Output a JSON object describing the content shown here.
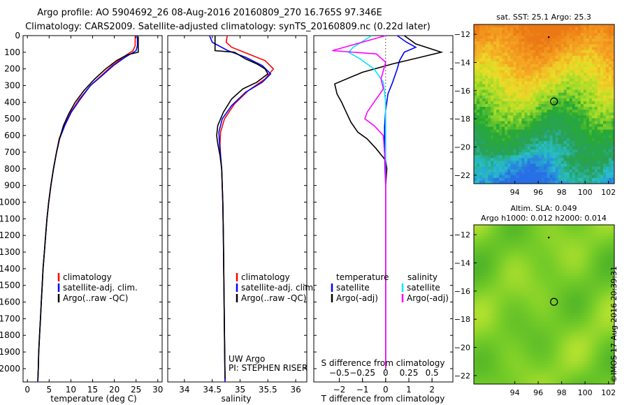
{
  "title": {
    "line1": "Argo profile: AO 5904692_26 08-Aug-2016 20160809_270 16.765S 97.346E",
    "line2": "Climatology: CARS2009. Satellite-adjusted climatology: synTS_20160809.nc (0.22d later)"
  },
  "colors": {
    "climatology": "#ff0000",
    "satellite": "#0000ff",
    "argo": "#000000",
    "salinity_satellite": "#00e5ff",
    "salinity_argo": "#ff00ff"
  },
  "credit": "©IMOS 17-Aug-2016 20:39:31",
  "ui": {
    "uw_argo": "UW Argo",
    "pi": "PI: STEPHEN RISER"
  },
  "chart_data": [
    {
      "id": "temperature",
      "type": "line",
      "xlabel": "temperature (deg C)",
      "ylabel": "",
      "xlim": [
        -1,
        31
      ],
      "ylim": [
        2080,
        0
      ],
      "xticks": [
        0,
        5,
        10,
        15,
        20,
        25,
        30
      ],
      "yticks": [
        0,
        100,
        200,
        300,
        400,
        500,
        600,
        700,
        800,
        900,
        1000,
        1100,
        1200,
        1300,
        1400,
        1500,
        1600,
        1700,
        1800,
        1900,
        2000
      ],
      "legend": [
        "climatology",
        "satellite-adj. clim.",
        "Argo(..raw -QC)"
      ],
      "series": [
        {
          "name": "climatology",
          "color": "#ff0000",
          "points": [
            [
              24.8,
              0
            ],
            [
              24.8,
              60
            ],
            [
              24.3,
              90
            ],
            [
              22,
              130
            ],
            [
              19.5,
              180
            ],
            [
              17,
              240
            ],
            [
              14.5,
              300
            ],
            [
              12,
              380
            ],
            [
              10,
              460
            ],
            [
              8.5,
              540
            ],
            [
              7.3,
              620
            ],
            [
              6.7,
              700
            ],
            [
              6,
              800
            ],
            [
              5.4,
              900
            ],
            [
              4.9,
              1000
            ],
            [
              4.5,
              1100
            ],
            [
              4.2,
              1200
            ],
            [
              3.9,
              1300
            ],
            [
              3.6,
              1400
            ],
            [
              3.4,
              1500
            ],
            [
              3.2,
              1600
            ],
            [
              3,
              1700
            ],
            [
              2.8,
              1800
            ],
            [
              2.6,
              1900
            ],
            [
              2.5,
              2000
            ],
            [
              2.4,
              2080
            ]
          ]
        },
        {
          "name": "satellite-adj. clim.",
          "color": "#0000ff",
          "points": [
            [
              25.3,
              0
            ],
            [
              25.3,
              60
            ],
            [
              25,
              90
            ],
            [
              22.5,
              130
            ],
            [
              19.8,
              180
            ],
            [
              17.2,
              240
            ],
            [
              14.5,
              300
            ],
            [
              12.2,
              380
            ],
            [
              10.1,
              460
            ],
            [
              8.6,
              540
            ],
            [
              7.4,
              620
            ],
            [
              6.7,
              700
            ],
            [
              6,
              800
            ],
            [
              5.4,
              900
            ],
            [
              4.9,
              1000
            ],
            [
              4.5,
              1100
            ],
            [
              4.2,
              1200
            ],
            [
              3.9,
              1300
            ],
            [
              3.6,
              1400
            ],
            [
              3.4,
              1500
            ],
            [
              3.2,
              1600
            ],
            [
              3,
              1700
            ],
            [
              2.8,
              1800
            ],
            [
              2.6,
              1900
            ],
            [
              2.5,
              2000
            ],
            [
              2.4,
              2080
            ]
          ]
        },
        {
          "name": "Argo(..raw -QC)",
          "color": "#000000",
          "points": [
            [
              25.5,
              5
            ],
            [
              25.5,
              100
            ],
            [
              23,
              115
            ],
            [
              20.5,
              150
            ],
            [
              18,
              200
            ],
            [
              15.5,
              260
            ],
            [
              13,
              330
            ],
            [
              11,
              400
            ],
            [
              9.5,
              470
            ],
            [
              8.3,
              540
            ],
            [
              7.4,
              620
            ],
            [
              6.7,
              700
            ],
            [
              6,
              800
            ],
            [
              5.4,
              900
            ],
            [
              4.9,
              1000
            ],
            [
              4.5,
              1100
            ],
            [
              4.2,
              1200
            ],
            [
              3.9,
              1300
            ],
            [
              3.6,
              1400
            ],
            [
              3.4,
              1500
            ],
            [
              3.2,
              1600
            ],
            [
              3,
              1700
            ],
            [
              2.8,
              1800
            ],
            [
              2.6,
              1900
            ],
            [
              2.5,
              2000
            ],
            [
              2.4,
              2070
            ]
          ]
        }
      ]
    },
    {
      "id": "salinity",
      "type": "line",
      "xlabel": "salinity",
      "ylabel": "",
      "xlim": [
        33.7,
        36.2
      ],
      "ylim": [
        2080,
        0
      ],
      "xticks": [
        34,
        34.5,
        35,
        35.5,
        36
      ],
      "legend": [
        "climatology",
        "satellite-adj. clim.",
        "Argo(..raw -QC)"
      ],
      "series": [
        {
          "name": "climatology",
          "color": "#ff0000",
          "points": [
            [
              34.77,
              0
            ],
            [
              34.75,
              40
            ],
            [
              34.85,
              70
            ],
            [
              35.15,
              110
            ],
            [
              35.45,
              150
            ],
            [
              35.6,
              200
            ],
            [
              35.45,
              260
            ],
            [
              35.15,
              330
            ],
            [
              34.9,
              410
            ],
            [
              34.72,
              500
            ],
            [
              34.65,
              580
            ],
            [
              34.64,
              650
            ],
            [
              34.65,
              720
            ],
            [
              34.67,
              800
            ],
            [
              34.68,
              900
            ],
            [
              34.69,
              1000
            ],
            [
              34.7,
              1200
            ],
            [
              34.71,
              1500
            ],
            [
              34.72,
              1800
            ],
            [
              34.73,
              2080
            ]
          ]
        },
        {
          "name": "satellite-adj. clim.",
          "color": "#0000ff",
          "points": [
            [
              34.45,
              0
            ],
            [
              34.5,
              40
            ],
            [
              34.78,
              90
            ],
            [
              35.1,
              130
            ],
            [
              35.4,
              180
            ],
            [
              35.55,
              230
            ],
            [
              35.4,
              280
            ],
            [
              35.1,
              340
            ],
            [
              34.85,
              420
            ],
            [
              34.68,
              500
            ],
            [
              34.62,
              580
            ],
            [
              34.63,
              650
            ],
            [
              34.65,
              720
            ],
            [
              34.67,
              800
            ],
            [
              34.68,
              900
            ],
            [
              34.69,
              1000
            ],
            [
              34.7,
              1200
            ],
            [
              34.71,
              1500
            ],
            [
              34.72,
              1800
            ],
            [
              34.73,
              2080
            ]
          ]
        },
        {
          "name": "Argo(..raw -QC)",
          "color": "#000000",
          "points": [
            [
              34.55,
              0
            ],
            [
              34.55,
              90
            ],
            [
              34.9,
              100
            ],
            [
              35.1,
              140
            ],
            [
              35.3,
              170
            ],
            [
              35.45,
              200
            ],
            [
              35.5,
              230
            ],
            [
              35.3,
              280
            ],
            [
              35.05,
              320
            ],
            [
              34.85,
              380
            ],
            [
              34.7,
              460
            ],
            [
              34.6,
              540
            ],
            [
              34.58,
              600
            ],
            [
              34.6,
              650
            ],
            [
              34.64,
              720
            ],
            [
              34.67,
              800
            ],
            [
              34.68,
              900
            ],
            [
              34.69,
              1000
            ],
            [
              34.7,
              1200
            ],
            [
              34.71,
              1500
            ],
            [
              34.72,
              1800
            ],
            [
              34.73,
              2060
            ]
          ]
        }
      ]
    },
    {
      "id": "difference",
      "type": "line",
      "xlabel": "T difference from climatology",
      "xlabel_top": "S difference from climatology",
      "xlim": [
        -3.1,
        2.9
      ],
      "ylim": [
        2080,
        0
      ],
      "xticks_T": [
        -2,
        -1,
        0,
        1,
        2
      ],
      "xticks_S": [
        -0.5,
        -0.25,
        0,
        0.25,
        0.5
      ],
      "xticks_S_labels": [
        "−0.5",
        "−0.25",
        "0",
        "0.25",
        "0.5"
      ],
      "legend_groups": [
        "temperature",
        "salinity"
      ],
      "legend": [
        "satellite",
        "Argo(-adj)",
        "satellite",
        "Argo(-adj)"
      ],
      "series": [
        {
          "name": "temperature satellite",
          "color": "#0000ff",
          "points": [
            [
              0.5,
              0
            ],
            [
              0.9,
              40
            ],
            [
              1.3,
              70
            ],
            [
              0.8,
              100
            ],
            [
              0.6,
              150
            ],
            [
              0.5,
              200
            ],
            [
              0.3,
              280
            ],
            [
              0.1,
              350
            ],
            [
              0,
              450
            ],
            [
              -0.05,
              550
            ],
            [
              -0.05,
              700
            ],
            [
              0,
              900
            ],
            [
              0,
              1200
            ],
            [
              0,
              1600
            ],
            [
              0,
              2000
            ]
          ]
        },
        {
          "name": "temperature Argo(-adj)",
          "color": "#000000",
          "points": [
            [
              0.8,
              0
            ],
            [
              1.3,
              50
            ],
            [
              2.4,
              100
            ],
            [
              1.5,
              130
            ],
            [
              0.3,
              170
            ],
            [
              -1,
              220
            ],
            [
              -2.2,
              290
            ],
            [
              -2.1,
              350
            ],
            [
              -1.9,
              400
            ],
            [
              -1.7,
              460
            ],
            [
              -1.5,
              520
            ],
            [
              -1.2,
              580
            ],
            [
              -0.8,
              620
            ],
            [
              -0.4,
              680
            ],
            [
              0,
              750
            ],
            [
              0.05,
              800
            ],
            [
              0,
              900
            ],
            [
              0,
              1200
            ],
            [
              0,
              1600
            ],
            [
              0,
              2000
            ]
          ]
        },
        {
          "name": "salinity satellite",
          "color": "#00e5ff",
          "points": [
            [
              -0.6,
              0
            ],
            [
              -1.4,
              70
            ],
            [
              -1.6,
              100
            ],
            [
              -1.1,
              140
            ],
            [
              -0.5,
              200
            ],
            [
              -0.1,
              280
            ],
            [
              0,
              400
            ],
            [
              0,
              600
            ],
            [
              0,
              800
            ],
            [
              0,
              1100
            ],
            [
              0,
              1500
            ],
            [
              0,
              2000
            ]
          ]
        },
        {
          "name": "salinity Argo(-adj)",
          "color": "#ff00ff",
          "points": [
            [
              0,
              0
            ],
            [
              -2.3,
              90
            ],
            [
              -0.4,
              110
            ],
            [
              0,
              160
            ],
            [
              -0.1,
              210
            ],
            [
              -0.2,
              260
            ],
            [
              -0.1,
              320
            ],
            [
              -0.4,
              380
            ],
            [
              -0.8,
              460
            ],
            [
              -0.9,
              500
            ],
            [
              -0.5,
              540
            ],
            [
              -0.1,
              600
            ],
            [
              0,
              800
            ],
            [
              0,
              1200
            ],
            [
              0,
              1600
            ],
            [
              0,
              2000
            ]
          ]
        }
      ]
    },
    {
      "id": "sst_map",
      "type": "heatmap",
      "title": "sat. SST: 25.1  Argo: 25.3",
      "xlim": [
        90.5,
        102.5
      ],
      "ylim": [
        -22.6,
        -11.3
      ],
      "xticks": [
        94,
        96,
        98,
        100,
        102
      ],
      "yticks": [
        -12,
        -14,
        -16,
        -18,
        -20,
        -22
      ],
      "argo_position": [
        97.346,
        -16.765
      ],
      "previous_position": [
        96.9,
        -12.2
      ]
    },
    {
      "id": "sla_map",
      "type": "heatmap",
      "title_line1": "Altim. SLA: 0.049",
      "title_line2": "Argo h1000: 0.012  h2000: 0.014",
      "xlim": [
        90.5,
        102.5
      ],
      "ylim": [
        -22.6,
        -11.3
      ],
      "xticks": [
        94,
        96,
        98,
        100,
        102
      ],
      "yticks": [
        -12,
        -14,
        -16,
        -18,
        -20,
        -22
      ],
      "argo_position": [
        97.346,
        -16.765
      ],
      "previous_position": [
        96.9,
        -12.2
      ]
    }
  ]
}
